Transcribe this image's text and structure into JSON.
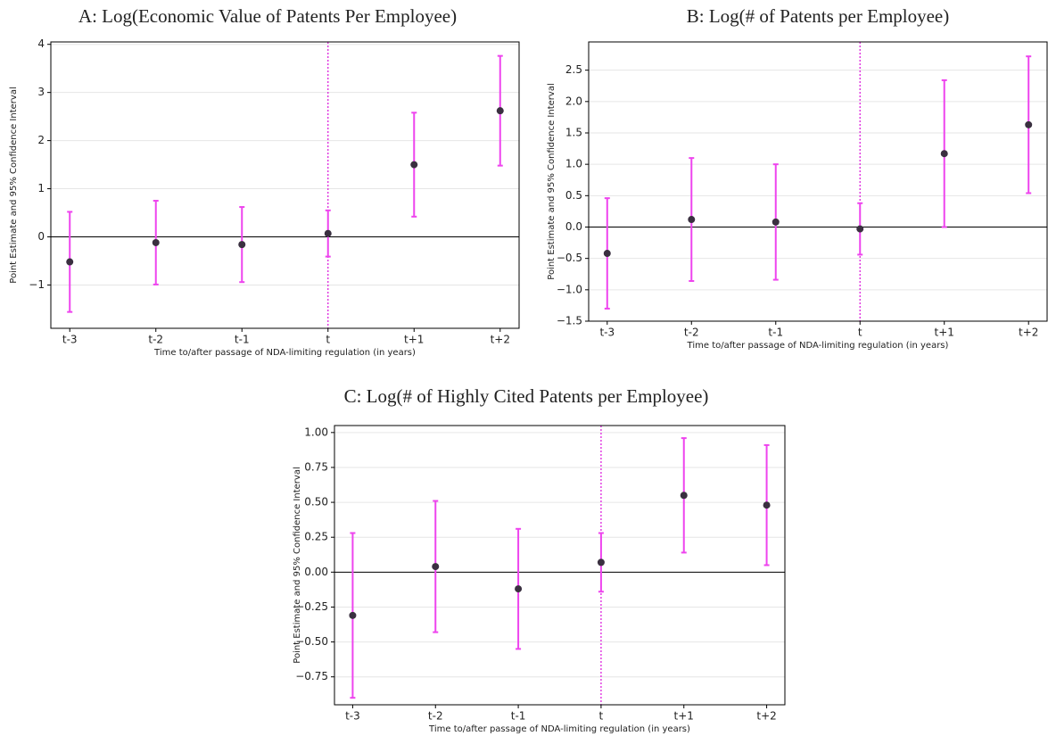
{
  "chart_data": [
    {
      "type": "errorbar",
      "title": "A: Log(Economic Value of Patents Per Employee)",
      "xlabel": "Time to/after passage of NDA-limiting regulation (in years)",
      "ylabel": "Point Estimate and 95% Confidence Interval",
      "categories": [
        "t-3",
        "t-2",
        "t-1",
        "t",
        "t+1",
        "t+2"
      ],
      "values": [
        -0.52,
        -0.12,
        -0.16,
        0.07,
        1.5,
        2.62
      ],
      "errors": [
        1.04,
        0.87,
        0.78,
        0.48,
        1.08,
        1.14
      ],
      "color": "#ee44ee",
      "point_color": "#3a3040",
      "ylim": [
        -1.9,
        4.05
      ],
      "yticks": [
        {
          "value": -1,
          "label": "−1"
        },
        0,
        1,
        2,
        3,
        4
      ],
      "hline": 0,
      "vline_index": 3,
      "grid": true
    },
    {
      "type": "errorbar",
      "title": "B: Log(# of Patents per Employee)",
      "xlabel": "Time to/after passage of NDA-limiting regulation (in years)",
      "ylabel": "Point Estimate and 95% Confidence Interval",
      "categories": [
        "t-3",
        "t-2",
        "t-1",
        "t",
        "t+1",
        "t+2"
      ],
      "values": [
        -0.42,
        0.12,
        0.08,
        -0.03,
        1.17,
        1.63
      ],
      "errors": [
        0.88,
        0.98,
        0.92,
        0.41,
        1.17,
        1.09
      ],
      "color": "#ee44ee",
      "point_color": "#3a3040",
      "ylim": [
        -1.5,
        2.95
      ],
      "yticks": [
        {
          "value": -1.5,
          "label": "−1.5"
        },
        {
          "value": -1,
          "label": "−1.0"
        },
        {
          "value": -0.5,
          "label": "−0.5"
        },
        {
          "value": 0,
          "label": "0.0"
        },
        0.5,
        {
          "value": 1,
          "label": "1.0"
        },
        1.5,
        {
          "value": 2,
          "label": "2.0"
        },
        2.5
      ],
      "hline": 0,
      "vline_index": 3,
      "grid": true
    },
    {
      "type": "errorbar",
      "title": "C: Log(# of Highly Cited Patents per Employee)",
      "xlabel": "Time to/after passage of NDA-limiting regulation (in years)",
      "ylabel": "Point Estimate and 95% Confidence Interval",
      "categories": [
        "t-3",
        "t-2",
        "t-1",
        "t",
        "t+1",
        "t+2"
      ],
      "values": [
        -0.31,
        0.04,
        -0.12,
        0.07,
        0.55,
        0.48
      ],
      "errors": [
        0.59,
        0.47,
        0.43,
        0.21,
        0.41,
        0.43
      ],
      "color": "#ee44ee",
      "point_color": "#3a3040",
      "ylim": [
        -0.95,
        1.05
      ],
      "yticks": [
        {
          "value": -0.75,
          "label": "−0.75"
        },
        {
          "value": -0.5,
          "label": "−0.50"
        },
        {
          "value": -0.25,
          "label": "−0.25"
        },
        {
          "value": 0,
          "label": "0.00"
        },
        0.25,
        {
          "value": 0.5,
          "label": "0.50"
        },
        0.75,
        {
          "value": 1,
          "label": "1.00"
        }
      ],
      "hline": 0,
      "vline_index": 3,
      "grid": true
    }
  ]
}
